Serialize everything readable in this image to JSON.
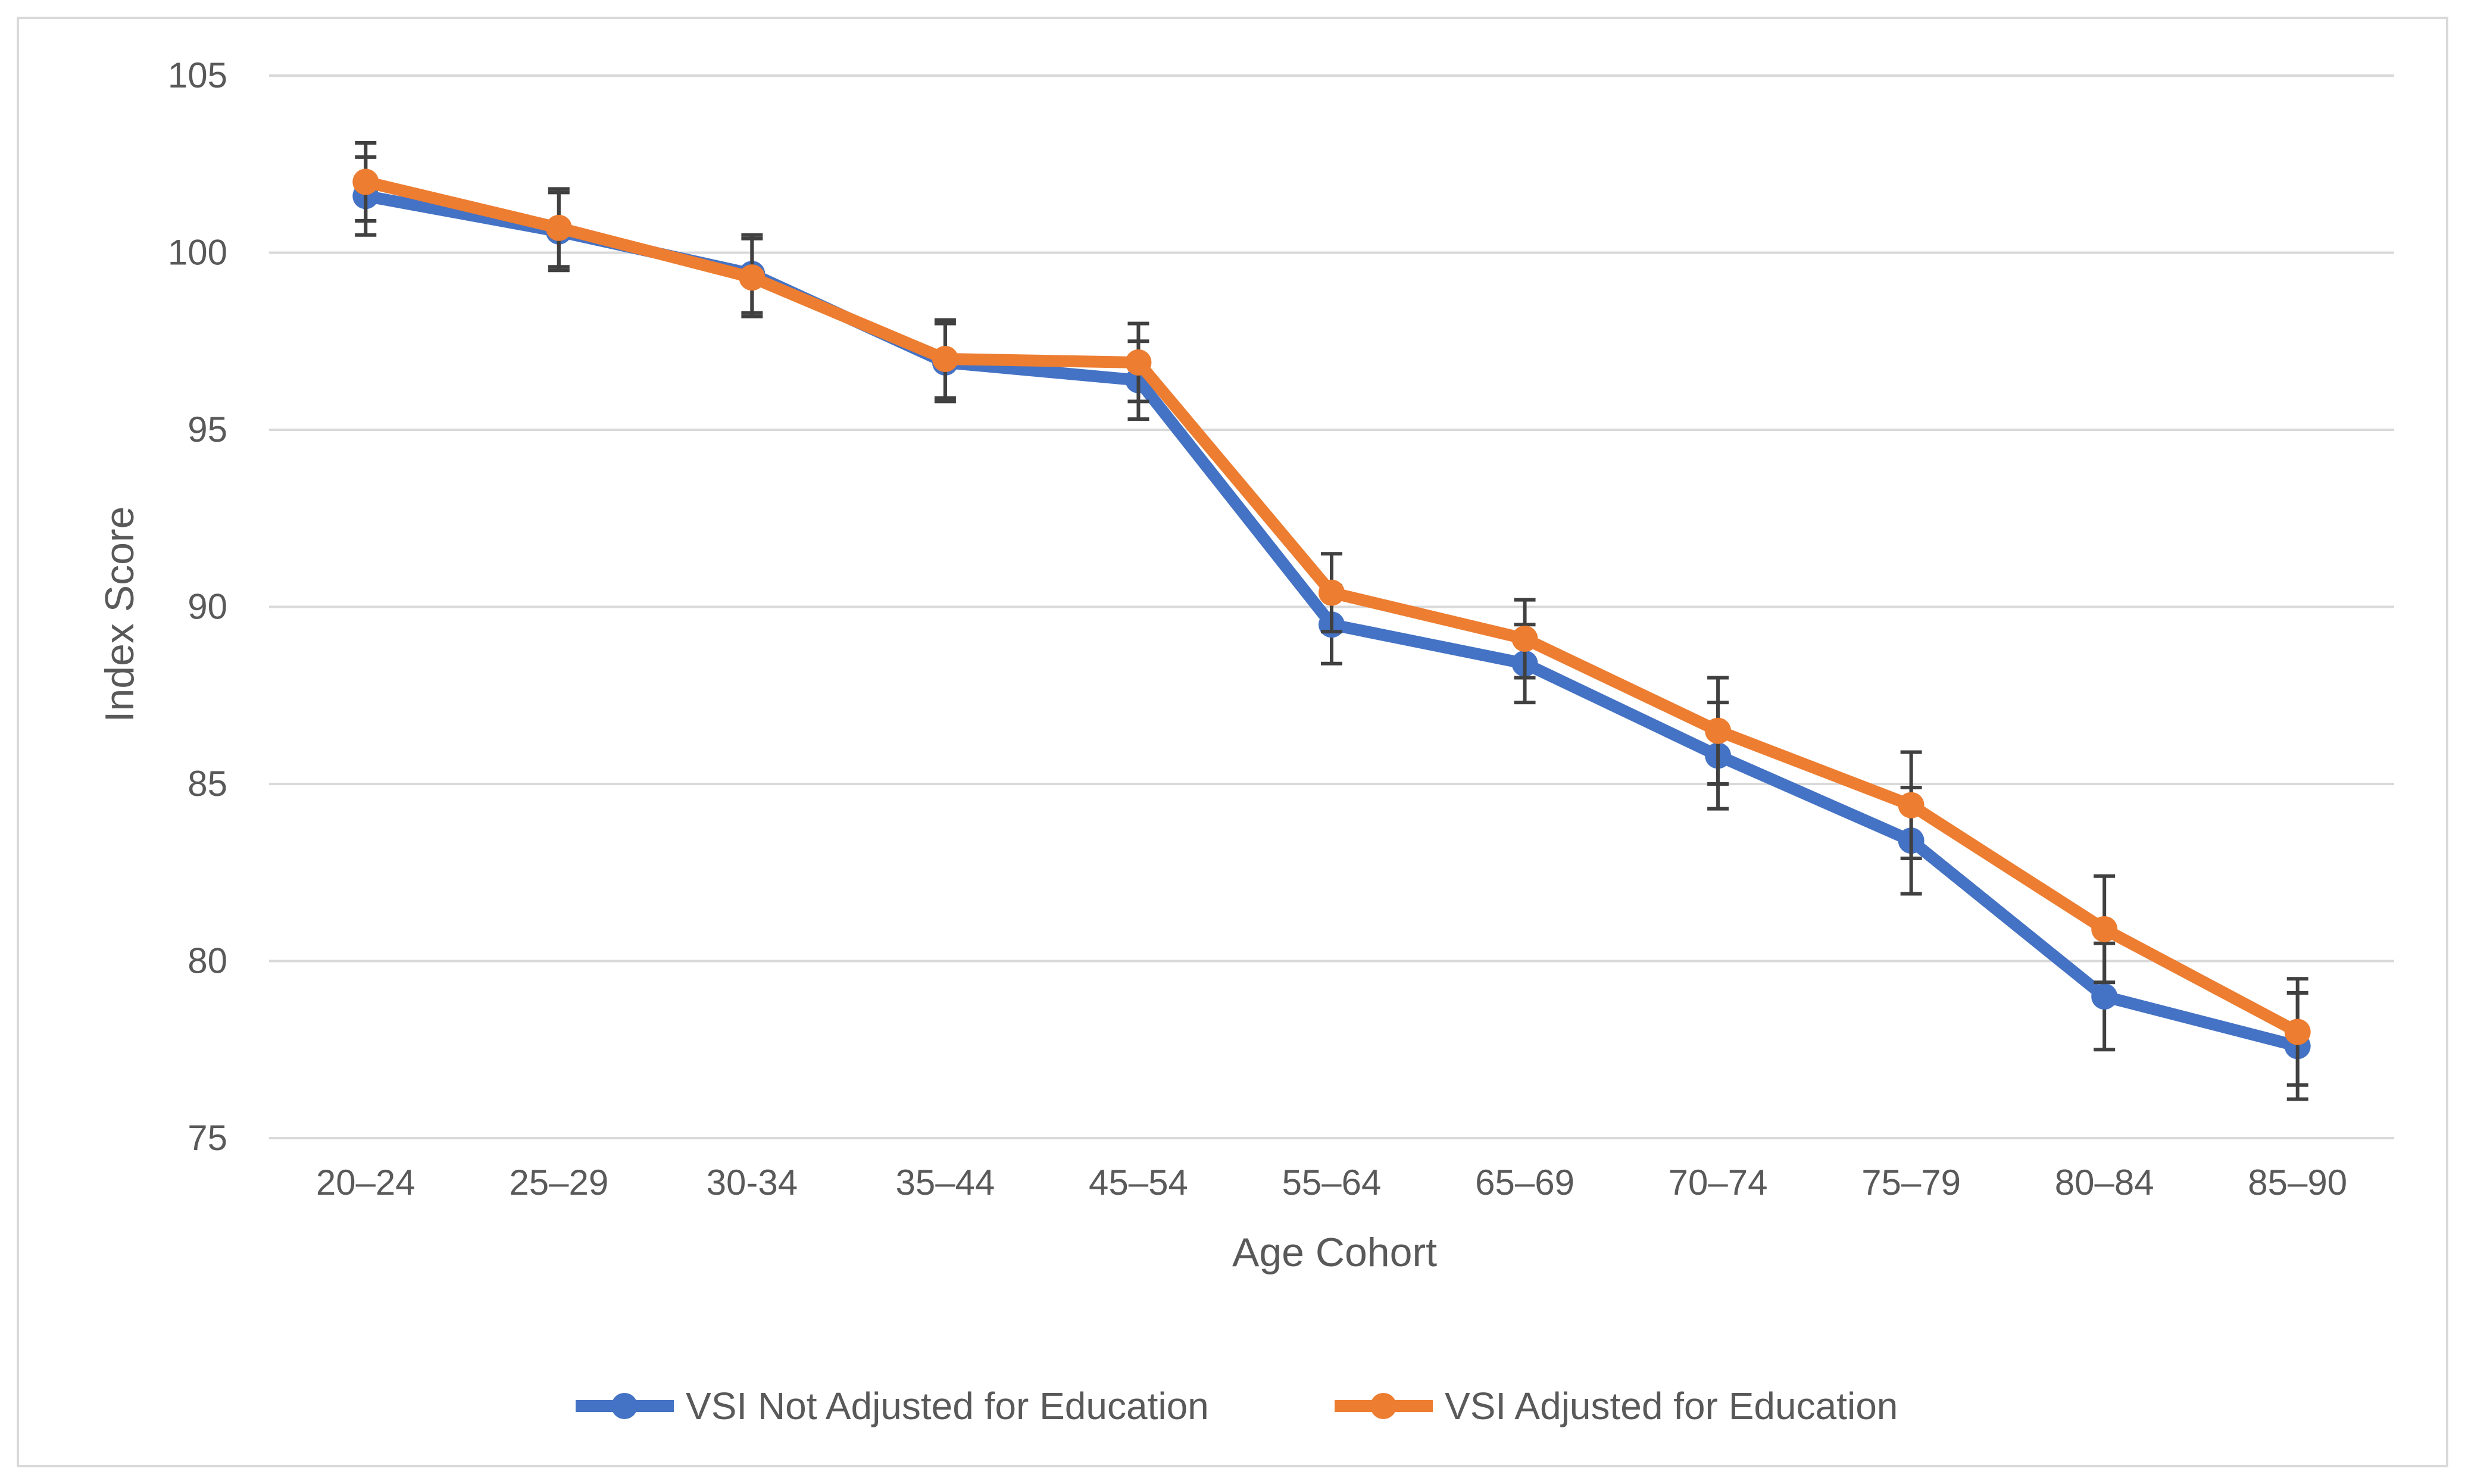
{
  "chart_data": {
    "type": "line",
    "title": "",
    "xlabel": "Age Cohort",
    "ylabel": "Index Score",
    "ylim": [
      75,
      105
    ],
    "yticks": [
      75,
      80,
      85,
      90,
      95,
      100,
      105
    ],
    "grid": true,
    "legend_position": "bottom",
    "categories": [
      "20–24",
      "25–29",
      "30-34",
      "35–44",
      "45–54",
      "55–64",
      "65–69",
      "70–74",
      "75–79",
      "80–84",
      "85–90"
    ],
    "series": [
      {
        "name": "VSI Not Adjusted for Education",
        "color": "#4472c4",
        "values": [
          101.6,
          100.6,
          99.4,
          96.9,
          96.4,
          89.5,
          88.4,
          85.8,
          83.4,
          79.0,
          77.6
        ],
        "error": [
          1.1,
          1.1,
          1.1,
          1.1,
          1.1,
          1.1,
          1.1,
          1.5,
          1.5,
          1.5,
          1.5
        ]
      },
      {
        "name": "VSI Adjusted for Education",
        "color": "#ed7d31",
        "values": [
          102.0,
          100.7,
          99.3,
          97.0,
          96.9,
          90.4,
          89.1,
          86.5,
          84.4,
          80.9,
          78.0
        ],
        "error": [
          1.1,
          1.1,
          1.1,
          1.1,
          1.1,
          1.1,
          1.1,
          1.5,
          1.5,
          1.5,
          1.5
        ]
      }
    ],
    "colors": {
      "grid": "#d9d9d9",
      "error_bar": "#404040",
      "text": "#595959"
    }
  }
}
